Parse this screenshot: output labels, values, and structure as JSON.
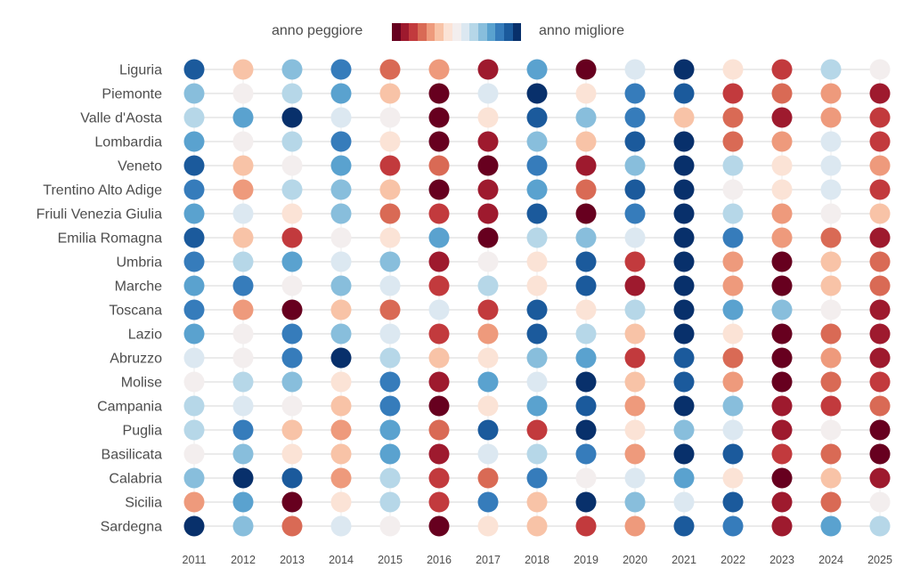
{
  "legend": {
    "left_label": "anno peggiore",
    "right_label": "anno migliore"
  },
  "chart_data": {
    "type": "heatmap",
    "title": "",
    "description_scale": "rank 1 = anno peggiore ... 15 = anno migliore",
    "palette": [
      "#67001f",
      "#9e1a2e",
      "#c23a3d",
      "#d96a55",
      "#ee9a7c",
      "#f8c3a7",
      "#fbe3d6",
      "#f3eeee",
      "#dce8f1",
      "#b6d7e8",
      "#88bedc",
      "#5aa2cf",
      "#367cbb",
      "#1b5a9c",
      "#08306b"
    ],
    "x": [
      "2011",
      "2012",
      "2013",
      "2014",
      "2015",
      "2016",
      "2017",
      "2018",
      "2019",
      "2020",
      "2021",
      "2022",
      "2023",
      "2024",
      "2025"
    ],
    "regions": [
      "Liguria",
      "Piemonte",
      "Valle d'Aosta",
      "Lombardia",
      "Veneto",
      "Trentino Alto Adige",
      "Friuli Venezia Giulia",
      "Emilia Romagna",
      "Umbria",
      "Marche",
      "Toscana",
      "Lazio",
      "Abruzzo",
      "Molise",
      "Campania",
      "Puglia",
      "Basilicata",
      "Calabria",
      "Sicilia",
      "Sardegna"
    ],
    "ranks": [
      [
        14,
        6,
        11,
        13,
        4,
        5,
        2,
        12,
        1,
        9,
        15,
        7,
        3,
        10,
        8
      ],
      [
        11,
        8,
        10,
        12,
        6,
        1,
        9,
        15,
        7,
        13,
        14,
        3,
        4,
        5,
        2
      ],
      [
        10,
        12,
        15,
        9,
        8,
        1,
        7,
        14,
        11,
        13,
        6,
        4,
        2,
        5,
        3
      ],
      [
        12,
        8,
        10,
        13,
        7,
        1,
        2,
        11,
        6,
        14,
        15,
        4,
        5,
        9,
        3
      ],
      [
        14,
        6,
        8,
        12,
        3,
        4,
        1,
        13,
        2,
        11,
        15,
        10,
        7,
        9,
        5
      ],
      [
        13,
        5,
        10,
        11,
        6,
        1,
        2,
        12,
        4,
        14,
        15,
        8,
        7,
        9,
        3
      ],
      [
        12,
        9,
        7,
        11,
        4,
        3,
        2,
        14,
        1,
        13,
        15,
        10,
        5,
        8,
        6
      ],
      [
        14,
        6,
        3,
        8,
        7,
        12,
        1,
        10,
        11,
        9,
        15,
        13,
        5,
        4,
        2
      ],
      [
        13,
        10,
        12,
        9,
        11,
        2,
        8,
        7,
        14,
        3,
        15,
        5,
        1,
        6,
        4
      ],
      [
        12,
        13,
        8,
        11,
        9,
        3,
        10,
        7,
        14,
        2,
        15,
        5,
        1,
        6,
        4
      ],
      [
        13,
        5,
        1,
        6,
        4,
        9,
        3,
        14,
        7,
        10,
        15,
        12,
        11,
        8,
        2
      ],
      [
        12,
        8,
        13,
        11,
        9,
        3,
        5,
        14,
        10,
        6,
        15,
        7,
        1,
        4,
        2
      ],
      [
        9,
        8,
        13,
        15,
        10,
        6,
        7,
        11,
        12,
        3,
        14,
        4,
        1,
        5,
        2
      ],
      [
        8,
        10,
        11,
        7,
        13,
        2,
        12,
        9,
        15,
        6,
        14,
        5,
        1,
        4,
        3
      ],
      [
        10,
        9,
        8,
        6,
        13,
        1,
        7,
        12,
        14,
        5,
        15,
        11,
        2,
        3,
        4
      ],
      [
        10,
        13,
        6,
        5,
        12,
        4,
        14,
        3,
        15,
        7,
        11,
        9,
        2,
        8,
        1
      ],
      [
        8,
        11,
        7,
        6,
        12,
        2,
        9,
        10,
        13,
        5,
        15,
        14,
        3,
        4,
        1
      ],
      [
        11,
        15,
        14,
        5,
        10,
        3,
        4,
        13,
        8,
        9,
        12,
        7,
        1,
        6,
        2
      ],
      [
        5,
        12,
        1,
        7,
        10,
        3,
        13,
        6,
        15,
        11,
        9,
        14,
        2,
        4,
        8
      ],
      [
        15,
        11,
        4,
        9,
        8,
        1,
        7,
        6,
        3,
        5,
        14,
        13,
        2,
        12,
        10
      ]
    ],
    "legend_placement": "top"
  }
}
